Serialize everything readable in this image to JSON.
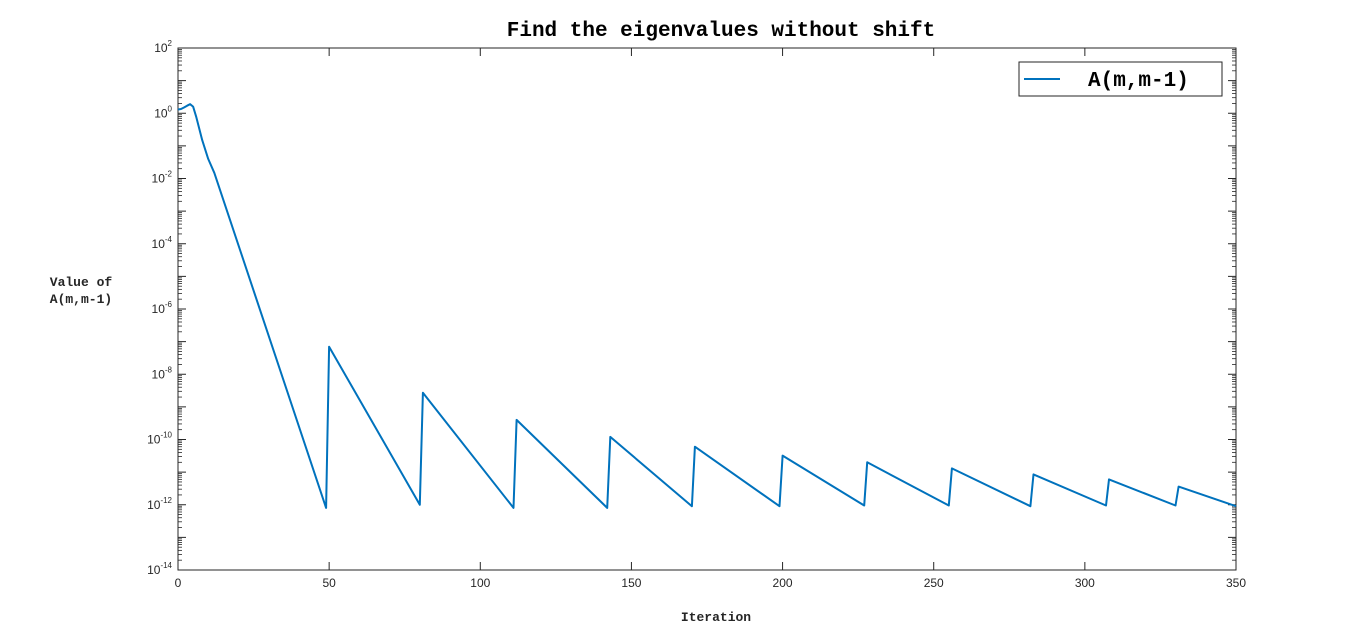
{
  "chart_data": {
    "type": "line",
    "title": "Find the eigenvalues without shift",
    "xlabel": "Iteration",
    "ylabel_lines": [
      "Value of",
      "A(m,m-1)"
    ],
    "xlim": [
      0,
      350
    ],
    "ylim": [
      1e-14,
      100
    ],
    "yscale": "log",
    "xticks": [
      0,
      50,
      100,
      150,
      200,
      250,
      300,
      350
    ],
    "ytick_exponents": [
      -14,
      -12,
      -10,
      -8,
      -6,
      -4,
      -2,
      0,
      2
    ],
    "ytick_base": "10",
    "legend_position": "top-right",
    "grid": false,
    "series": [
      {
        "name": "A(m,m-1)",
        "color": "#0072BD",
        "x": [
          0,
          1,
          2,
          3,
          4,
          5,
          6,
          8,
          10,
          12,
          49,
          50,
          80,
          81,
          111,
          112,
          142,
          143,
          170,
          171,
          199,
          200,
          227,
          228,
          255,
          256,
          282,
          283,
          307,
          308,
          330,
          331,
          350
        ],
        "y": [
          1.3,
          1.35,
          1.5,
          1.7,
          1.9,
          1.6,
          0.8,
          0.15,
          0.04,
          0.015,
          8e-13,
          7e-08,
          1e-12,
          2.7e-09,
          8e-13,
          4e-10,
          8e-13,
          1.2e-10,
          9e-13,
          6e-11,
          9e-13,
          3.2e-11,
          9.5e-13,
          2e-11,
          9.5e-13,
          1.3e-11,
          9e-13,
          8.5e-12,
          9.5e-13,
          6e-12,
          9.5e-13,
          3.6e-12,
          9e-13
        ]
      }
    ]
  }
}
